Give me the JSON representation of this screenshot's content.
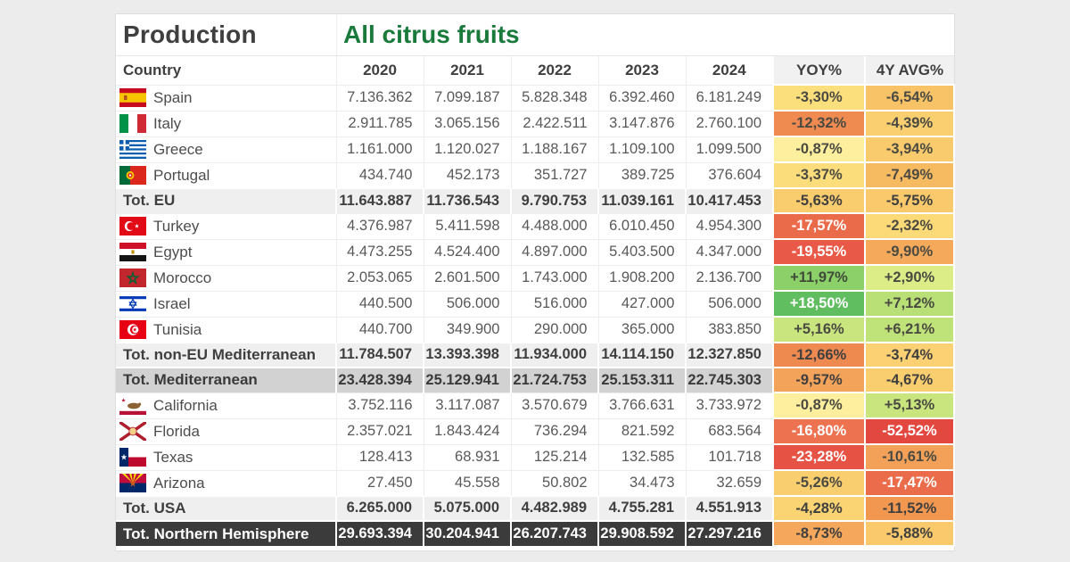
{
  "header": {
    "title_left": "Production",
    "title_right": "All citrus fruits",
    "title_right_color": "#1A7A3C"
  },
  "table": {
    "columns": [
      "Country",
      "2020",
      "2021",
      "2022",
      "2023",
      "2024",
      "YOY%",
      "4Y AVG%"
    ],
    "rows": [
      {
        "label": "Spain",
        "flag": "spain",
        "type": "country",
        "values": [
          "7.136.362",
          "7.099.187",
          "5.828.348",
          "6.392.460",
          "6.181.249"
        ],
        "yoy": {
          "text": "-3,30%",
          "bg": "#FCDF7D",
          "fg": "#4A4A42"
        },
        "avg": {
          "text": "-6,54%",
          "bg": "#F8C367",
          "fg": "#4A4A42"
        }
      },
      {
        "label": "Italy",
        "flag": "italy",
        "type": "country",
        "values": [
          "2.911.785",
          "3.065.156",
          "2.422.511",
          "3.147.876",
          "2.760.100"
        ],
        "yoy": {
          "text": "-12,32%",
          "bg": "#EF8B51",
          "fg": "#4A4A42"
        },
        "avg": {
          "text": "-4,39%",
          "bg": "#FACF70",
          "fg": "#4A4A42"
        }
      },
      {
        "label": "Greece",
        "flag": "greece",
        "type": "country",
        "values": [
          "1.161.000",
          "1.120.027",
          "1.188.167",
          "1.109.100",
          "1.099.500"
        ],
        "yoy": {
          "text": "-0,87%",
          "bg": "#FDEF9E",
          "fg": "#4A4A42"
        },
        "avg": {
          "text": "-3,94%",
          "bg": "#F9CB6C",
          "fg": "#4A4A42"
        }
      },
      {
        "label": "Portugal",
        "flag": "portugal",
        "type": "country",
        "values": [
          "434.740",
          "452.173",
          "351.727",
          "389.725",
          "376.604"
        ],
        "yoy": {
          "text": "-3,37%",
          "bg": "#FBDE7B",
          "fg": "#4A4A42"
        },
        "avg": {
          "text": "-7,49%",
          "bg": "#F6BB61",
          "fg": "#4A4A42"
        }
      },
      {
        "label": "Tot. EU",
        "flag": null,
        "type": "subtotal",
        "values": [
          "11.643.887",
          "11.736.543",
          "9.790.753",
          "11.039.161",
          "10.417.453"
        ],
        "yoy": {
          "text": "-5,63%",
          "bg": "#F9CD6E",
          "fg": "#3F3F3F"
        },
        "avg": {
          "text": "-5,75%",
          "bg": "#F9C96B",
          "fg": "#3F3F3F"
        }
      },
      {
        "label": "Turkey",
        "flag": "turkey",
        "type": "country",
        "values": [
          "4.376.987",
          "5.411.598",
          "4.488.000",
          "6.010.450",
          "4.954.300"
        ],
        "yoy": {
          "text": "-17,57%",
          "bg": "#EA6B4A",
          "fg": "#FFFFFF"
        },
        "avg": {
          "text": "-2,32%",
          "bg": "#FCDA78",
          "fg": "#4A4A42"
        }
      },
      {
        "label": "Egypt",
        "flag": "egypt",
        "type": "country",
        "values": [
          "4.473.255",
          "4.524.400",
          "4.897.000",
          "5.403.500",
          "4.347.000"
        ],
        "yoy": {
          "text": "-19,55%",
          "bg": "#E85947",
          "fg": "#FFFFFF"
        },
        "avg": {
          "text": "-9,90%",
          "bg": "#F5A95B",
          "fg": "#4A4A42"
        }
      },
      {
        "label": "Morocco",
        "flag": "morocco",
        "type": "country",
        "values": [
          "2.053.065",
          "2.601.500",
          "1.743.000",
          "1.908.200",
          "2.136.700"
        ],
        "yoy": {
          "text": "+11,97%",
          "bg": "#8CD06A",
          "fg": "#3F4A38"
        },
        "avg": {
          "text": "+2,90%",
          "bg": "#DCEC86",
          "fg": "#4A4A42"
        }
      },
      {
        "label": "Israel",
        "flag": "israel",
        "type": "country",
        "values": [
          "440.500",
          "506.000",
          "516.000",
          "427.000",
          "506.000"
        ],
        "yoy": {
          "text": "+18,50%",
          "bg": "#60BE60",
          "fg": "#FFFFFF"
        },
        "avg": {
          "text": "+7,12%",
          "bg": "#B8E077",
          "fg": "#4A4A42"
        }
      },
      {
        "label": "Tunisia",
        "flag": "tunisia",
        "type": "country",
        "values": [
          "440.700",
          "349.900",
          "290.000",
          "365.000",
          "383.850"
        ],
        "yoy": {
          "text": "+5,16%",
          "bg": "#C9E67E",
          "fg": "#4A4A42"
        },
        "avg": {
          "text": "+6,21%",
          "bg": "#C0E379",
          "fg": "#4A4A42"
        }
      },
      {
        "label": "Tot. non-EU Mediterranean",
        "flag": null,
        "type": "subtotal",
        "values": [
          "11.784.507",
          "13.393.398",
          "11.934.000",
          "14.114.150",
          "12.327.850"
        ],
        "yoy": {
          "text": "-12,66%",
          "bg": "#EE8950",
          "fg": "#3F3F3F"
        },
        "avg": {
          "text": "-3,74%",
          "bg": "#FBD173",
          "fg": "#3F3F3F"
        }
      },
      {
        "label": "Tot. Mediterranean",
        "flag": null,
        "type": "totmed",
        "values": [
          "23.428.394",
          "25.129.941",
          "21.724.753",
          "25.153.311",
          "22.745.303"
        ],
        "yoy": {
          "text": "-9,57%",
          "bg": "#F4A35B",
          "fg": "#3F3F3F"
        },
        "avg": {
          "text": "-4,67%",
          "bg": "#F9CE6F",
          "fg": "#3F3F3F"
        }
      },
      {
        "label": "California",
        "flag": "california",
        "type": "country",
        "values": [
          "3.752.116",
          "3.117.087",
          "3.570.679",
          "3.766.631",
          "3.733.972"
        ],
        "yoy": {
          "text": "-0,87%",
          "bg": "#FDEF9E",
          "fg": "#4A4A42"
        },
        "avg": {
          "text": "+5,13%",
          "bg": "#C9E57D",
          "fg": "#4A4A42"
        }
      },
      {
        "label": "Florida",
        "flag": "florida",
        "type": "country",
        "values": [
          "2.357.021",
          "1.843.424",
          "736.294",
          "821.592",
          "683.564"
        ],
        "yoy": {
          "text": "-16,80%",
          "bg": "#ED7250",
          "fg": "#FFFFFF"
        },
        "avg": {
          "text": "-52,52%",
          "bg": "#E34840",
          "fg": "#FFFFFF"
        }
      },
      {
        "label": "Texas",
        "flag": "texas",
        "type": "country",
        "values": [
          "128.413",
          "68.931",
          "125.214",
          "132.585",
          "101.718"
        ],
        "yoy": {
          "text": "-23,28%",
          "bg": "#E65244",
          "fg": "#FFFFFF"
        },
        "avg": {
          "text": "-10,61%",
          "bg": "#F3A159",
          "fg": "#4A4A42"
        }
      },
      {
        "label": "Arizona",
        "flag": "arizona",
        "type": "country",
        "values": [
          "27.450",
          "45.558",
          "50.802",
          "34.473",
          "32.659"
        ],
        "yoy": {
          "text": "-5,26%",
          "bg": "#F9CE6F",
          "fg": "#4A4A42"
        },
        "avg": {
          "text": "-17,47%",
          "bg": "#EA6C4B",
          "fg": "#FFFFFF"
        }
      },
      {
        "label": "Tot. USA",
        "flag": null,
        "type": "subtotal",
        "values": [
          "6.265.000",
          "5.075.000",
          "4.482.989",
          "4.755.281",
          "4.551.913"
        ],
        "yoy": {
          "text": "-4,28%",
          "bg": "#FAD372",
          "fg": "#3F3F3F"
        },
        "avg": {
          "text": "-11,52%",
          "bg": "#F29750",
          "fg": "#3F3F3F"
        }
      },
      {
        "label": "Tot. Northern Hemisphere",
        "flag": null,
        "type": "grand",
        "values": [
          "29.693.394",
          "30.204.941",
          "26.207.743",
          "29.908.592",
          "27.297.216"
        ],
        "yoy": {
          "text": "-8,73%",
          "bg": "#F5A85C",
          "fg": "#3F3F3F"
        },
        "avg": {
          "text": "-5,88%",
          "bg": "#F9C96B",
          "fg": "#3F3F3F"
        }
      }
    ]
  },
  "chart_data": {
    "type": "table",
    "title": "Production — All citrus fruits",
    "columns": [
      "Country",
      "2020",
      "2021",
      "2022",
      "2023",
      "2024",
      "YOY%",
      "4Y AVG%"
    ],
    "rows": [
      [
        "Spain",
        7136362,
        7099187,
        5828348,
        6392460,
        6181249,
        -3.3,
        -6.54
      ],
      [
        "Italy",
        2911785,
        3065156,
        2422511,
        3147876,
        2760100,
        -12.32,
        -4.39
      ],
      [
        "Greece",
        1161000,
        1120027,
        1188167,
        1109100,
        1099500,
        -0.87,
        -3.94
      ],
      [
        "Portugal",
        434740,
        452173,
        351727,
        389725,
        376604,
        -3.37,
        -7.49
      ],
      [
        "Tot. EU",
        11643887,
        11736543,
        9790753,
        11039161,
        10417453,
        -5.63,
        -5.75
      ],
      [
        "Turkey",
        4376987,
        5411598,
        4488000,
        6010450,
        4954300,
        -17.57,
        -2.32
      ],
      [
        "Egypt",
        4473255,
        4524400,
        4897000,
        5403500,
        4347000,
        -19.55,
        -9.9
      ],
      [
        "Morocco",
        2053065,
        2601500,
        1743000,
        1908200,
        2136700,
        11.97,
        2.9
      ],
      [
        "Israel",
        440500,
        506000,
        516000,
        427000,
        506000,
        18.5,
        7.12
      ],
      [
        "Tunisia",
        440700,
        349900,
        290000,
        365000,
        383850,
        5.16,
        6.21
      ],
      [
        "Tot. non-EU Mediterranean",
        11784507,
        13393398,
        11934000,
        14114150,
        12327850,
        -12.66,
        -3.74
      ],
      [
        "Tot. Mediterranean",
        23428394,
        25129941,
        21724753,
        25153311,
        22745303,
        -9.57,
        -4.67
      ],
      [
        "California",
        3752116,
        3117087,
        3570679,
        3766631,
        3733972,
        -0.87,
        5.13
      ],
      [
        "Florida",
        2357021,
        1843424,
        736294,
        821592,
        683564,
        -16.8,
        -52.52
      ],
      [
        "Texas",
        128413,
        68931,
        125214,
        132585,
        101718,
        -23.28,
        -10.61
      ],
      [
        "Arizona",
        27450,
        45558,
        50802,
        34473,
        32659,
        -5.26,
        -17.47
      ],
      [
        "Tot. USA",
        6265000,
        5075000,
        4482989,
        4755281,
        4551913,
        -4.28,
        -11.52
      ],
      [
        "Tot. Northern Hemisphere",
        29693394,
        30204941,
        26207743,
        29908592,
        27297216,
        -8.73,
        -5.88
      ]
    ]
  }
}
